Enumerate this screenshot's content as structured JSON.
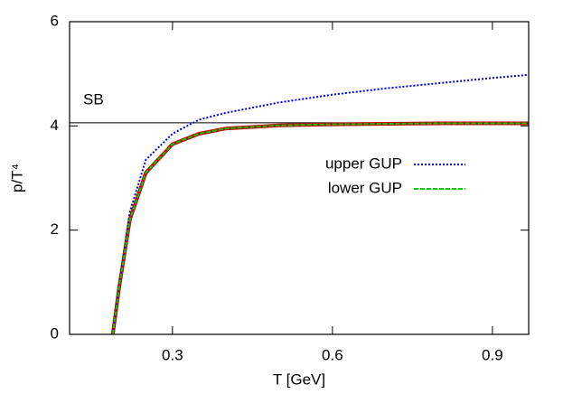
{
  "chart_data": {
    "type": "line",
    "xlabel": "T [GeV]",
    "ylabel": "p/T⁴",
    "x": [
      0.188,
      0.2,
      0.22,
      0.25,
      0.3,
      0.35,
      0.4,
      0.5,
      0.6,
      0.7,
      0.8,
      0.9,
      0.968
    ],
    "series": [
      {
        "color": "#cc0000",
        "style": "solid",
        "values": [
          0,
          0.9,
          2.2,
          3.1,
          3.65,
          3.85,
          3.95,
          4.01,
          4.03,
          4.04,
          4.05,
          4.05,
          4.05
        ]
      },
      {
        "name": "upper GUP",
        "color": "#0000ee",
        "style": "dotted",
        "values": [
          0,
          0.95,
          2.35,
          3.35,
          3.85,
          4.12,
          4.25,
          4.45,
          4.6,
          4.72,
          4.82,
          4.92,
          4.98
        ]
      },
      {
        "name": "lower GUP",
        "color": "#00cc00",
        "style": "dashed",
        "values": [
          0,
          0.9,
          2.2,
          3.1,
          3.65,
          3.85,
          3.95,
          4.01,
          4.03,
          4.04,
          4.05,
          4.05,
          4.05
        ]
      }
    ],
    "reference_line": {
      "label": "SB",
      "value": 4.06
    },
    "xlim": [
      0.107,
      0.968
    ],
    "ylim": [
      0,
      6
    ],
    "xticks": [
      0.3,
      0.6,
      0.9
    ],
    "yticks": [
      0,
      2,
      4,
      6
    ]
  }
}
